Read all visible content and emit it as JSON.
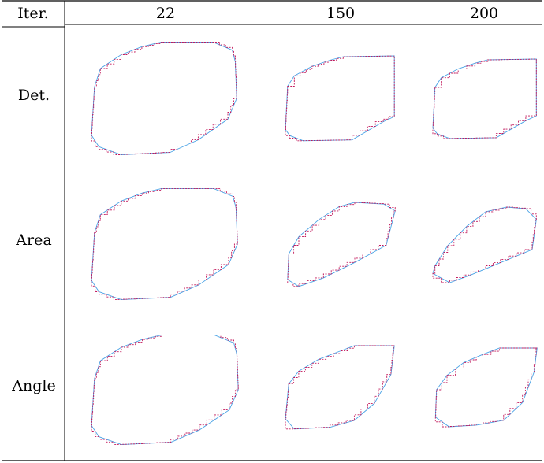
{
  "table": {
    "corner_label": "Iter.",
    "columns": [
      "22",
      "150",
      "200"
    ],
    "rows": [
      "Det.",
      "Area",
      "Angle"
    ]
  },
  "colors": {
    "rule": "#000000",
    "polygon_curve": "#4aa3e6",
    "digital_contour": "#c2185b"
  }
}
